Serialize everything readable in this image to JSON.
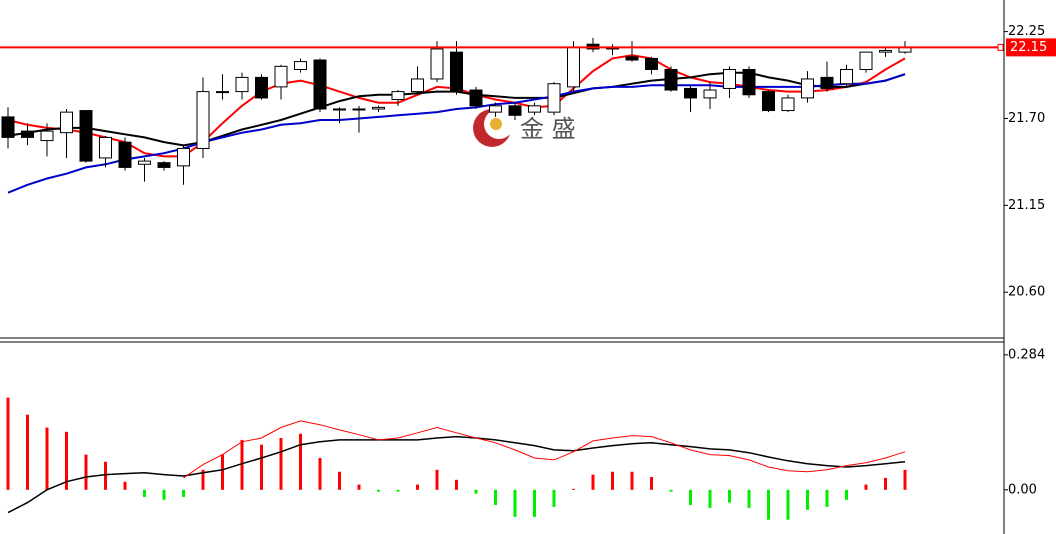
{
  "chart_data": [
    {
      "type": "candlestick",
      "open": [
        21.71,
        21.62,
        21.56,
        21.61,
        21.75,
        21.45,
        21.55,
        21.41,
        21.42,
        21.4,
        21.51,
        21.87,
        21.87,
        21.96,
        21.9,
        22.01,
        22.07,
        21.76,
        21.76,
        21.76,
        21.82,
        21.87,
        21.95,
        22.12,
        21.88,
        21.74,
        21.78,
        21.74,
        21.74,
        21.9,
        22.17,
        22.15,
        22.09,
        22.08,
        22.01,
        21.89,
        21.83,
        21.89,
        22.01,
        21.87,
        21.75,
        21.83,
        21.96,
        21.92,
        22.01,
        22.12,
        22.12
      ],
      "high": [
        21.77,
        21.67,
        21.67,
        21.76,
        21.75,
        21.59,
        21.58,
        21.45,
        21.43,
        21.53,
        21.96,
        21.98,
        21.99,
        21.98,
        22.04,
        22.08,
        22.08,
        21.77,
        21.78,
        21.78,
        21.88,
        22.03,
        22.19,
        22.19,
        21.9,
        21.8,
        21.8,
        21.8,
        21.93,
        22.19,
        22.21,
        22.17,
        22.19,
        22.09,
        22.03,
        21.91,
        21.93,
        22.03,
        22.03,
        21.88,
        21.85,
        22.0,
        22.06,
        22.04,
        22.12,
        22.15,
        22.19
      ],
      "low": [
        21.51,
        21.53,
        21.46,
        21.45,
        21.42,
        21.39,
        21.37,
        21.3,
        21.37,
        21.28,
        21.45,
        21.82,
        21.82,
        21.82,
        21.82,
        21.99,
        21.74,
        21.67,
        21.61,
        21.74,
        21.78,
        21.85,
        21.93,
        21.85,
        21.76,
        21.71,
        21.69,
        21.72,
        21.72,
        21.87,
        22.12,
        22.1,
        22.06,
        21.98,
        21.87,
        21.74,
        21.76,
        21.83,
        21.83,
        21.74,
        21.74,
        21.8,
        21.87,
        21.9,
        21.99,
        22.09,
        22.11
      ],
      "close": [
        21.58,
        21.58,
        21.62,
        21.74,
        21.43,
        21.58,
        21.39,
        21.43,
        21.39,
        21.51,
        21.87,
        21.87,
        21.96,
        21.83,
        22.03,
        22.06,
        21.76,
        21.76,
        21.76,
        21.77,
        21.87,
        21.95,
        22.14,
        21.87,
        21.78,
        21.78,
        21.72,
        21.78,
        21.92,
        22.15,
        22.14,
        22.14,
        22.07,
        22.01,
        21.88,
        21.83,
        21.88,
        22.01,
        21.85,
        21.75,
        21.83,
        21.95,
        21.89,
        22.01,
        22.12,
        22.13,
        22.15
      ],
      "up_color": "#ffffff",
      "down_color": "#000000",
      "series": [
        {
          "color": "#ff0000",
          "values": [
            21.69,
            21.66,
            21.64,
            21.63,
            21.61,
            21.58,
            21.55,
            21.48,
            21.46,
            21.46,
            21.55,
            21.67,
            21.78,
            21.87,
            21.92,
            21.94,
            21.91,
            21.87,
            21.83,
            21.8,
            21.8,
            21.85,
            21.9,
            21.89,
            21.85,
            21.82,
            21.8,
            21.77,
            21.78,
            21.89,
            22.0,
            22.08,
            22.1,
            22.08,
            22.01,
            21.96,
            21.93,
            21.92,
            21.9,
            21.88,
            21.87,
            21.87,
            21.88,
            21.9,
            21.93,
            22.01,
            22.08
          ]
        },
        {
          "color": "#000000",
          "values": [
            21.59,
            21.61,
            21.63,
            21.64,
            21.64,
            21.62,
            21.6,
            21.58,
            21.55,
            21.53,
            21.55,
            21.59,
            21.63,
            21.66,
            21.69,
            21.73,
            21.77,
            21.81,
            21.84,
            21.85,
            21.85,
            21.86,
            21.87,
            21.87,
            21.85,
            21.84,
            21.83,
            21.83,
            21.83,
            21.86,
            21.89,
            21.9,
            21.92,
            21.94,
            21.95,
            21.96,
            21.98,
            21.99,
            21.99,
            21.96,
            21.94,
            21.91,
            21.9,
            21.9,
            21.92,
            21.94,
            21.98
          ]
        },
        {
          "color": "#0000cc",
          "values": [
            21.23,
            21.28,
            21.32,
            21.35,
            21.39,
            21.41,
            21.44,
            21.46,
            21.48,
            21.51,
            21.55,
            21.58,
            21.61,
            21.63,
            21.66,
            21.67,
            21.69,
            21.69,
            21.7,
            21.71,
            21.72,
            21.73,
            21.74,
            21.76,
            21.77,
            21.79,
            21.8,
            21.82,
            21.84,
            21.87,
            21.89,
            21.9,
            21.9,
            21.91,
            21.91,
            21.91,
            21.91,
            21.9,
            21.9,
            21.9,
            21.9,
            21.9,
            21.91,
            21.92,
            21.92,
            21.94,
            21.98
          ]
        }
      ],
      "ylim": [
        20.31,
        22.45
      ],
      "yticks": [
        22.25,
        {
          "value": 21.7,
          "label": "21.70"
        },
        21.15,
        {
          "value": 20.6,
          "label": "20.60"
        }
      ],
      "price_line": {
        "value": 22.15,
        "color": "#ff0000"
      },
      "watermark": "金 盛"
    },
    {
      "type": "bar",
      "values": [
        0.194,
        0.158,
        0.131,
        0.122,
        0.074,
        0.059,
        0.017,
        -0.015,
        -0.021,
        -0.015,
        0.042,
        0.074,
        0.105,
        0.095,
        0.109,
        0.118,
        0.067,
        0.038,
        0.011,
        -0.004,
        -0.004,
        0.011,
        0.042,
        0.021,
        -0.008,
        -0.032,
        -0.057,
        -0.057,
        -0.036,
        0.002,
        0.032,
        0.038,
        0.038,
        0.027,
        -0.004,
        -0.032,
        -0.038,
        -0.027,
        -0.038,
        -0.063,
        -0.063,
        -0.042,
        -0.036,
        -0.021,
        0.011,
        0.025,
        0.042
      ],
      "positive_color": "#ff0000",
      "negative_color": "#00ee00",
      "series": [
        {
          "color": "#000000",
          "values": [
            -0.048,
            -0.027,
            0.0,
            0.017,
            0.027,
            0.032,
            0.034,
            0.036,
            0.032,
            0.029,
            0.036,
            0.042,
            0.055,
            0.067,
            0.08,
            0.095,
            0.101,
            0.105,
            0.105,
            0.105,
            0.105,
            0.105,
            0.109,
            0.112,
            0.109,
            0.105,
            0.099,
            0.093,
            0.084,
            0.082,
            0.088,
            0.093,
            0.097,
            0.099,
            0.095,
            0.091,
            0.086,
            0.084,
            0.078,
            0.069,
            0.061,
            0.055,
            0.051,
            0.048,
            0.051,
            0.055,
            0.059
          ]
        },
        {
          "color": "#ff0000",
          "values": [
            null,
            null,
            null,
            null,
            null,
            null,
            null,
            null,
            null,
            0.025,
            0.053,
            0.074,
            0.101,
            0.109,
            0.131,
            0.145,
            0.137,
            0.126,
            0.116,
            0.105,
            0.109,
            0.12,
            0.131,
            0.12,
            0.109,
            0.099,
            0.084,
            0.067,
            0.063,
            0.08,
            0.103,
            0.109,
            0.114,
            0.112,
            0.099,
            0.084,
            0.074,
            0.072,
            0.063,
            0.048,
            0.04,
            0.038,
            0.042,
            0.051,
            0.057,
            0.067,
            0.08
          ]
        }
      ],
      "ylim": [
        -0.093,
        0.311
      ],
      "yticks": [
        0.284,
        {
          "value": 0,
          "label": "0.00"
        }
      ]
    }
  ]
}
